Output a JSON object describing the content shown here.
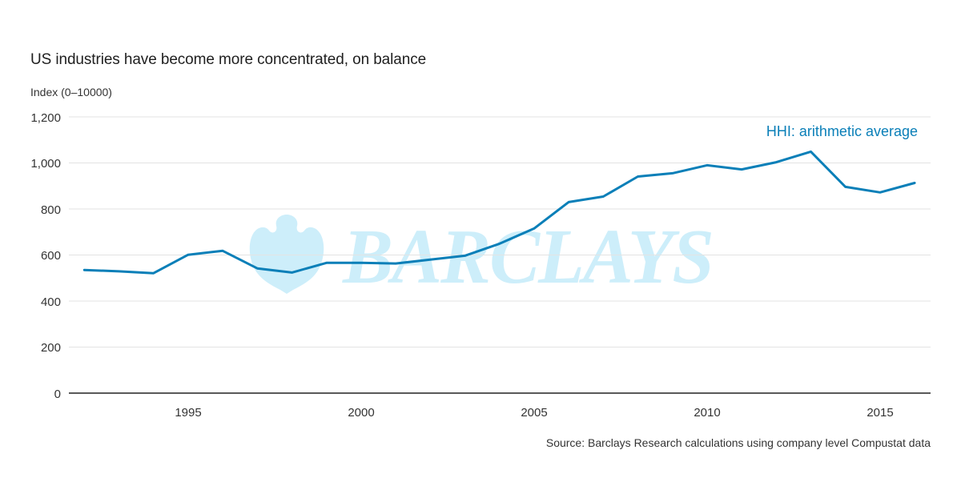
{
  "header": {
    "title": "US industries have become more concentrated, on balance",
    "units": "Index (0–10000)"
  },
  "footer": {
    "source": "Source: Barclays Research calculations using company level Compustat data"
  },
  "watermark": {
    "text": "BARCLAYS",
    "icon": "eagle-icon",
    "color": "#cdeefa"
  },
  "colors": {
    "line": "#0a7fb8",
    "grid": "#e3e3e3",
    "axis": "#222222"
  },
  "chart_data": {
    "type": "line",
    "title": "US industries have become more concentrated, on balance",
    "xlabel": "",
    "ylabel": "Index (0–10000)",
    "ylim": [
      0,
      1200
    ],
    "xlim": [
      1991.6,
      2016.5
    ],
    "grid": true,
    "legend_position": "top-right (inline label)",
    "yticks": [
      0,
      200,
      400,
      600,
      800,
      1000,
      1200
    ],
    "ytick_labels": [
      "0",
      "200",
      "400",
      "600",
      "800",
      "1,000",
      "1,200"
    ],
    "xticks": [
      1995,
      2000,
      2005,
      2010,
      2015
    ],
    "xtick_labels": [
      "1995",
      "2000",
      "2005",
      "2010",
      "2015"
    ],
    "x": [
      1992,
      1993,
      1994,
      1995,
      1996,
      1997,
      1998,
      1999,
      2000,
      2001,
      2002,
      2003,
      2004,
      2005,
      2006,
      2007,
      2008,
      2009,
      2010,
      2011,
      2012,
      2013,
      2014,
      2015,
      2016
    ],
    "series": [
      {
        "name": "HHI: arithmetic average",
        "values": [
          535,
          529,
          521,
          601,
          618,
          542,
          524,
          566,
          566,
          563,
          580,
          597,
          649,
          715,
          830,
          854,
          941,
          955,
          990,
          972,
          1003,
          1049,
          896,
          872,
          913
        ]
      }
    ],
    "annotations": [
      "Source: Barclays Research calculations using company level Compustat data"
    ]
  }
}
